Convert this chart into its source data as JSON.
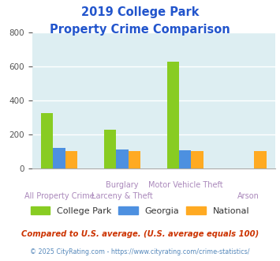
{
  "title_line1": "2019 College Park",
  "title_line2": "Property Crime Comparison",
  "series": {
    "College Park": [
      325,
      228,
      630,
      0
    ],
    "Georgia": [
      120,
      113,
      107,
      0
    ],
    "National": [
      100,
      100,
      100,
      100
    ]
  },
  "colors": {
    "College Park": "#88cc22",
    "Georgia": "#4d90e0",
    "National": "#ffaa22"
  },
  "ylim": [
    0,
    800
  ],
  "yticks": [
    0,
    200,
    400,
    600,
    800
  ],
  "bg_color": "#ddeef2",
  "grid_color": "#ffffff",
  "title_color": "#2255cc",
  "xlabel_color": "#aa88bb",
  "label_tops": [
    "",
    "Burglary",
    "Motor Vehicle Theft",
    ""
  ],
  "label_bots": [
    "All Property Crime",
    "Larceny & Theft",
    "",
    "Arson"
  ],
  "series_names": [
    "College Park",
    "Georgia",
    "National"
  ],
  "footnote1": "Compared to U.S. average. (U.S. average equals 100)",
  "footnote2": "© 2025 CityRating.com - https://www.cityrating.com/crime-statistics/",
  "footnote1_color": "#cc3300",
  "footnote2_color": "#5588bb"
}
